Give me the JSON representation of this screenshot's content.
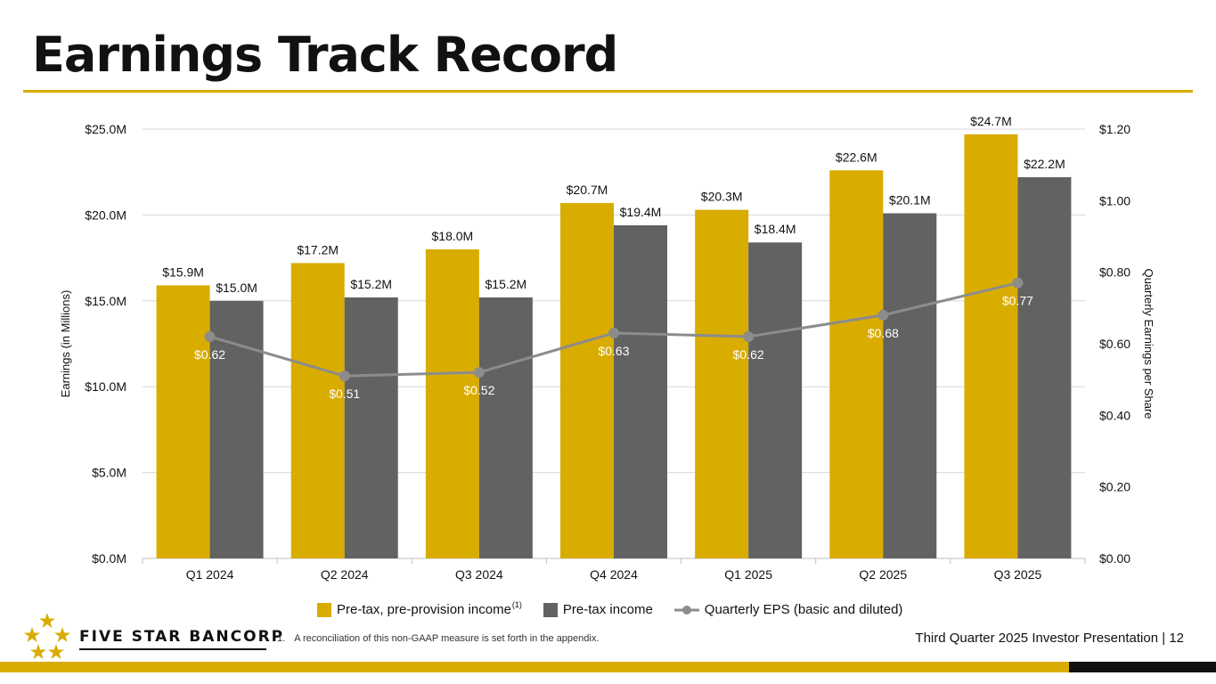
{
  "page": {
    "title": "Earnings Track Record",
    "footnote_number": "1.",
    "footnote_text": "A reconciliation of this non-GAAP measure is set forth in the appendix.",
    "brand_name": "FIVE STAR BANCORP",
    "presentation": "Third Quarter 2025 Investor Presentation |",
    "page_number": "12"
  },
  "colors": {
    "gold": "#d9ac00",
    "gray_bar": "#626262",
    "eps_line": "#8c8c8c",
    "gridline": "#d9d9d9"
  },
  "legend": {
    "ppi_label": "Pre-tax, pre-provision income",
    "ppi_superscript": "(1)",
    "pti_label": "Pre-tax income",
    "eps_label": "Quarterly EPS (basic and diluted)"
  },
  "chart_data": {
    "type": "bar",
    "categories": [
      "Q1 2024",
      "Q2 2024",
      "Q3 2024",
      "Q4 2024",
      "Q1 2025",
      "Q2 2025",
      "Q3 2025"
    ],
    "series": [
      {
        "name": "Pre-tax, pre-provision income",
        "axis": "left",
        "values": [
          15.9,
          17.2,
          18.0,
          20.7,
          20.3,
          22.6,
          24.7
        ],
        "labels": [
          "$15.9M",
          "$17.2M",
          "$18.0M",
          "$20.7M",
          "$20.3M",
          "$22.6M",
          "$24.7M"
        ]
      },
      {
        "name": "Pre-tax income",
        "axis": "left",
        "values": [
          15.0,
          15.2,
          15.2,
          19.4,
          18.4,
          20.1,
          22.2
        ],
        "labels": [
          "$15.0M",
          "$15.2M",
          "$15.2M",
          "$19.4M",
          "$18.4M",
          "$20.1M",
          "$22.2M"
        ]
      },
      {
        "name": "Quarterly EPS (basic and diluted)",
        "axis": "right",
        "type": "line",
        "values": [
          0.62,
          0.51,
          0.52,
          0.63,
          0.62,
          0.68,
          0.77
        ],
        "labels": [
          "$0.62",
          "$0.51",
          "$0.52",
          "$0.63",
          "$0.62",
          "$0.68",
          "$0.77"
        ]
      }
    ],
    "ylabel": "Earnings (in Millions)",
    "y2label": "Quarterly Earnings per Share",
    "ylim": [
      0,
      25
    ],
    "y2lim": [
      0,
      1.2
    ],
    "yticks": [
      0,
      5,
      10,
      15,
      20,
      25
    ],
    "ytick_labels": [
      "$0.0M",
      "$5.0M",
      "$10.0M",
      "$15.0M",
      "$20.0M",
      "$25.0M"
    ],
    "y2ticks": [
      0,
      0.2,
      0.4,
      0.6,
      0.8,
      1.0,
      1.2
    ],
    "y2tick_labels": [
      "$0.00",
      "$0.20",
      "$0.40",
      "$0.60",
      "$0.80",
      "$1.00",
      "$1.20"
    ],
    "grid": true,
    "legend_position": "bottom"
  }
}
